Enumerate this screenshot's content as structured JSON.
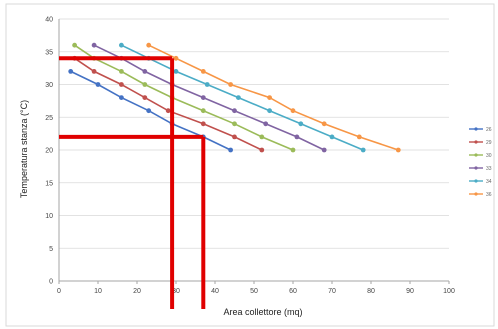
{
  "chart_data": {
    "type": "line",
    "xlabel": "Area collettore (mq)",
    "ylabel": "Temperatura stanza (°C)",
    "xlim": [
      0,
      100
    ],
    "ylim": [
      0,
      40
    ],
    "x_ticks": [
      "0",
      "10",
      "20",
      "30",
      "40",
      "50",
      "60",
      "70",
      "80",
      "90",
      "100"
    ],
    "y_ticks": [
      "0",
      "5",
      "10",
      "15",
      "20",
      "25",
      "30",
      "35",
      "40"
    ],
    "grid": true,
    "legend_position": "right",
    "legend_labels": [
      "26",
      "29",
      "30",
      "33",
      "34",
      "36"
    ],
    "series": [
      {
        "color": "#4472c4",
        "x": [
          3,
          10,
          16,
          23,
          29,
          37,
          44
        ],
        "y": [
          32,
          30,
          28,
          26,
          24,
          22,
          20
        ]
      },
      {
        "color": "#c0504d",
        "x": [
          4,
          9,
          16,
          22,
          28,
          37,
          45,
          52
        ],
        "y": [
          34,
          32,
          30,
          28,
          26,
          24,
          22,
          20
        ]
      },
      {
        "color": "#9bbb59",
        "x": [
          4,
          9,
          16,
          22,
          29,
          37,
          45,
          52,
          60
        ],
        "y": [
          36,
          34,
          32,
          30,
          28,
          26,
          24,
          22,
          20
        ]
      },
      {
        "color": "#8064a2",
        "x": [
          9,
          16,
          22,
          29,
          37,
          45,
          53,
          61,
          68
        ],
        "y": [
          36,
          34,
          32,
          30,
          28,
          26,
          24,
          22,
          20
        ]
      },
      {
        "color": "#4bacc6",
        "x": [
          16,
          23,
          30,
          38,
          46,
          54,
          62,
          70,
          78
        ],
        "y": [
          36,
          34,
          32,
          30,
          28,
          26,
          24,
          22,
          20
        ]
      },
      {
        "color": "#f79646",
        "x": [
          23,
          30,
          37,
          44,
          54,
          60,
          68,
          77,
          87
        ],
        "y": [
          36,
          34,
          32,
          30,
          28,
          26,
          24,
          22,
          20
        ]
      }
    ],
    "annotations": {
      "color": "#e00000",
      "horizontal": [
        {
          "y": 34,
          "x_from": 0,
          "x_to": 29
        },
        {
          "y": 22,
          "x_from": 0,
          "x_to": 37
        }
      ],
      "vertical": [
        {
          "x": 29,
          "y_from": 0,
          "y_to": 34
        },
        {
          "x": 37,
          "y_from": 0,
          "y_to": 22
        }
      ]
    }
  }
}
